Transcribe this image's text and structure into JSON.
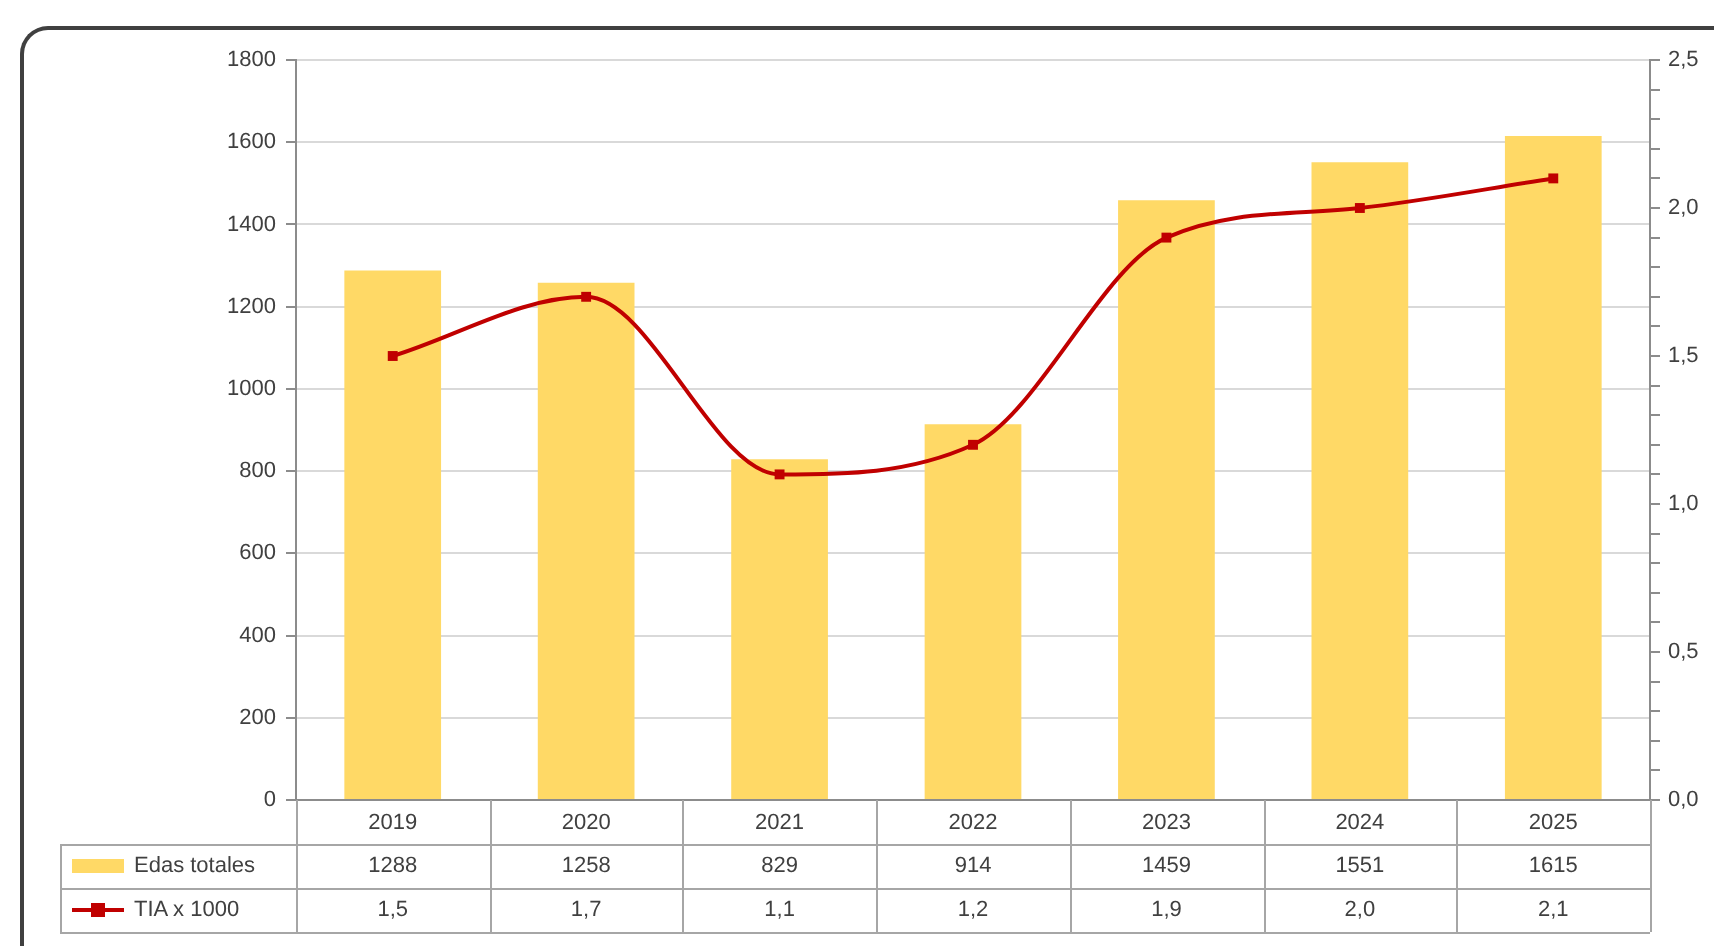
{
  "chart_data": {
    "type": "bar",
    "categories": [
      "2019",
      "2020",
      "2021",
      "2022",
      "2023",
      "2024",
      "2025"
    ],
    "series": [
      {
        "name": "Edas totales",
        "color": "#ffd966",
        "values": [
          1288,
          1258,
          829,
          914,
          1459,
          1551,
          1615
        ],
        "value_labels": [
          "1288",
          "1258",
          "829",
          "914",
          "1459",
          "1551",
          "1615"
        ]
      },
      {
        "name": "TIA x 1000",
        "type": "line",
        "axis": "y2",
        "color": "#c00000",
        "marker": "square",
        "values": [
          1.5,
          1.7,
          1.1,
          1.2,
          1.9,
          2.0,
          2.1
        ],
        "value_labels": [
          "1,5",
          "1,7",
          "1,1",
          "1,2",
          "1,9",
          "2,0",
          "2,1"
        ]
      }
    ],
    "ylim": [
      0,
      1800
    ],
    "yticks": [
      0,
      200,
      400,
      600,
      800,
      1000,
      1200,
      1400,
      1600,
      1800
    ],
    "y2lim": [
      0,
      2.5
    ],
    "y2ticks": [
      {
        "value": 0,
        "label": "0,0"
      },
      {
        "value": 0.1,
        "label": null
      },
      {
        "value": 0.2,
        "label": null
      },
      {
        "value": 0.3,
        "label": null
      },
      {
        "value": 0.4,
        "label": null
      },
      {
        "value": 0.5,
        "label": "0,5"
      },
      {
        "value": 0.6,
        "label": null
      },
      {
        "value": 0.7,
        "label": null
      },
      {
        "value": 0.8,
        "label": null
      },
      {
        "value": 0.9,
        "label": null
      },
      {
        "value": 1,
        "label": "1,0"
      },
      {
        "value": 1.1,
        "label": null
      },
      {
        "value": 1.2,
        "label": null
      },
      {
        "value": 1.3,
        "label": null
      },
      {
        "value": 1.4,
        "label": null
      },
      {
        "value": 1.5,
        "label": "1,5"
      },
      {
        "value": 1.6,
        "label": null
      },
      {
        "value": 1.7,
        "label": null
      },
      {
        "value": 1.8,
        "label": null
      },
      {
        "value": 1.9,
        "label": null
      },
      {
        "value": 2,
        "label": "2,0"
      },
      {
        "value": 2.1,
        "label": null
      },
      {
        "value": 2.2,
        "label": null
      },
      {
        "value": 2.3,
        "label": null
      },
      {
        "value": 2.4,
        "label": null
      },
      {
        "value": 2.5,
        "label": "2,5"
      }
    ],
    "grid": "y",
    "legend": "bottom left"
  }
}
